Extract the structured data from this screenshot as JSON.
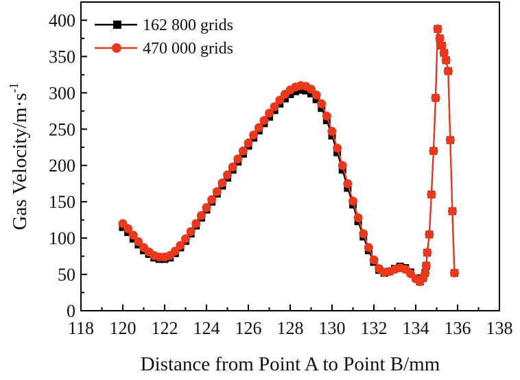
{
  "chart_data": {
    "type": "line",
    "title": "",
    "xlabel": "Distance from Point A to Point B/mm",
    "ylabel": "Gas Velocity/m·s",
    "ylabel_superscript": "-1",
    "xlim": [
      118,
      138
    ],
    "ylim": [
      0,
      425
    ],
    "xticks": [
      118,
      120,
      122,
      124,
      126,
      128,
      130,
      132,
      134,
      136,
      138
    ],
    "yticks": [
      0,
      50,
      100,
      150,
      200,
      250,
      300,
      350,
      400
    ],
    "grid": false,
    "legend_position": "top-left",
    "series": [
      {
        "name": "162 800 grids",
        "color": "#000000",
        "marker": "square",
        "x": [
          120,
          120.25,
          120.5,
          120.75,
          121,
          121.25,
          121.5,
          121.75,
          122,
          122.25,
          122.5,
          122.75,
          123,
          123.25,
          123.5,
          123.75,
          124,
          124.25,
          124.5,
          124.75,
          125,
          125.25,
          125.5,
          125.75,
          126,
          126.25,
          126.5,
          126.75,
          127,
          127.25,
          127.5,
          127.75,
          128,
          128.25,
          128.5,
          128.75,
          129,
          129.25,
          129.5,
          129.75,
          130,
          130.25,
          130.5,
          130.75,
          131,
          131.25,
          131.5,
          131.75,
          132,
          132.25,
          132.5,
          132.75,
          133,
          133.25,
          133.5,
          133.75,
          134,
          134.2,
          134.35,
          134.45,
          134.5,
          134.55,
          134.65,
          134.75,
          134.85,
          134.95,
          135.05,
          135.15,
          135.25,
          135.35,
          135.45,
          135.55,
          135.65,
          135.75,
          135.85
        ],
        "y": [
          115,
          108,
          99,
          91,
          83,
          78,
          73,
          71,
          71,
          73,
          79,
          87,
          96,
          106,
          117,
          128,
          139,
          150,
          161,
          172,
          183,
          194,
          205,
          216,
          227,
          238,
          248,
          258,
          267,
          276,
          285,
          292,
          298,
          302,
          304,
          303,
          299,
          291,
          279,
          262,
          241,
          218,
          194,
          169,
          146,
          123,
          102,
          83,
          67,
          56,
          52,
          54,
          58,
          61,
          59,
          53,
          45,
          40,
          45,
          52,
          62,
          80,
          105,
          160,
          220,
          293,
          388,
          375,
          365,
          355,
          345,
          330,
          235,
          137,
          52
        ]
      },
      {
        "name": "470 000 grids",
        "color": "#e8391f",
        "marker": "circle",
        "x": [
          120,
          120.25,
          120.5,
          120.75,
          121,
          121.25,
          121.5,
          121.75,
          122,
          122.25,
          122.5,
          122.75,
          123,
          123.25,
          123.5,
          123.75,
          124,
          124.25,
          124.5,
          124.75,
          125,
          125.25,
          125.5,
          125.75,
          126,
          126.25,
          126.5,
          126.75,
          127,
          127.25,
          127.5,
          127.75,
          128,
          128.25,
          128.5,
          128.75,
          129,
          129.25,
          129.5,
          129.75,
          130,
          130.25,
          130.5,
          130.75,
          131,
          131.25,
          131.5,
          131.75,
          132,
          132.25,
          132.5,
          132.75,
          133,
          133.25,
          133.5,
          133.75,
          134,
          134.2,
          134.35,
          134.45,
          134.5,
          134.55,
          134.65,
          134.75,
          134.85,
          134.95,
          135.05,
          135.15,
          135.25,
          135.35,
          135.45,
          135.55,
          135.65,
          135.75,
          135.85
        ],
        "y": [
          120,
          113,
          104,
          95,
          87,
          81,
          76,
          74,
          74,
          76,
          82,
          90,
          99,
          109,
          120,
          131,
          142,
          153,
          164,
          176,
          187,
          198,
          209,
          220,
          231,
          242,
          252,
          262,
          272,
          281,
          290,
          298,
          304,
          308,
          310,
          309,
          305,
          297,
          285,
          268,
          247,
          224,
          200,
          175,
          151,
          128,
          106,
          87,
          70,
          58,
          53,
          54,
          57,
          59,
          57,
          51,
          44,
          40,
          45,
          52,
          62,
          80,
          105,
          160,
          220,
          293,
          388,
          375,
          365,
          355,
          345,
          330,
          235,
          137,
          52
        ]
      }
    ]
  }
}
